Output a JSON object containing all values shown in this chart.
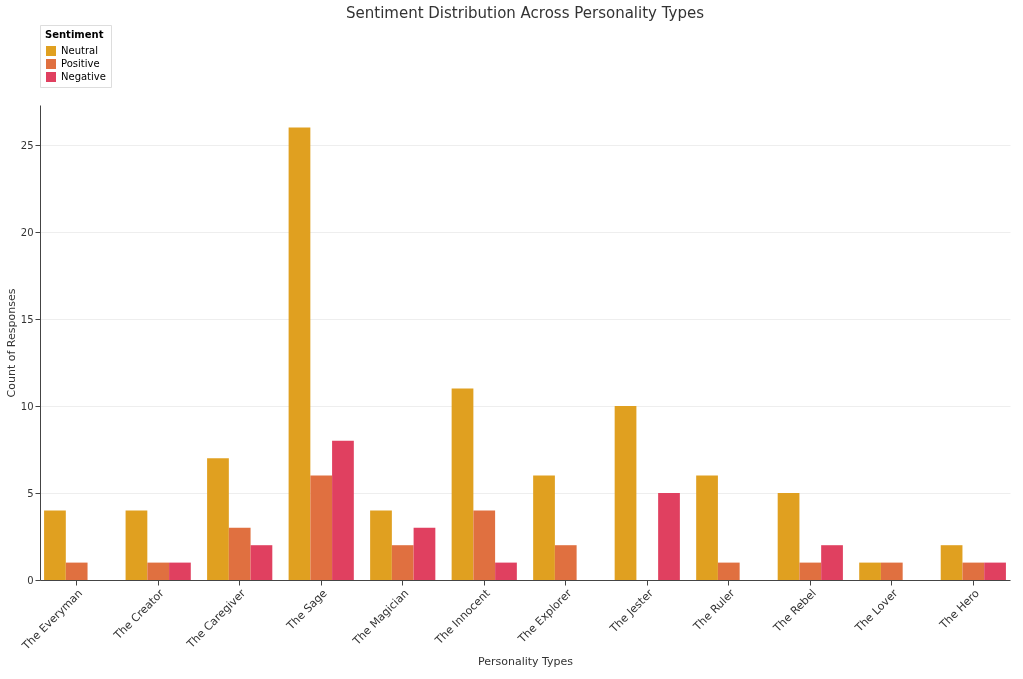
{
  "chart_data": {
    "type": "bar",
    "title": "Sentiment Distribution Across Personality Types",
    "xlabel": "Personality Types",
    "ylabel": "Count of Responses",
    "legend_title": "Sentiment",
    "categories": [
      "The Everyman",
      "The Creator",
      "The Caregiver",
      "The Sage",
      "The Magician",
      "The Innocent",
      "The Explorer",
      "The Jester",
      "The Ruler",
      "The Rebel",
      "The Lover",
      "The Hero"
    ],
    "series": [
      {
        "name": "Neutral",
        "color": "#e0a020",
        "values": [
          4,
          4,
          7,
          26,
          4,
          11,
          6,
          10,
          6,
          5,
          1,
          2
        ]
      },
      {
        "name": "Positive",
        "color": "#e07040",
        "values": [
          1,
          1,
          3,
          6,
          2,
          4,
          2,
          null,
          1,
          1,
          1,
          1
        ]
      },
      {
        "name": "Negative",
        "color": "#e04060",
        "values": [
          null,
          1,
          2,
          8,
          3,
          1,
          null,
          5,
          null,
          2,
          null,
          1
        ]
      }
    ],
    "ylim": [
      0,
      27.3
    ],
    "yticks": [
      0,
      5,
      10,
      15,
      20,
      25
    ],
    "grid": "y",
    "legend": "top"
  }
}
